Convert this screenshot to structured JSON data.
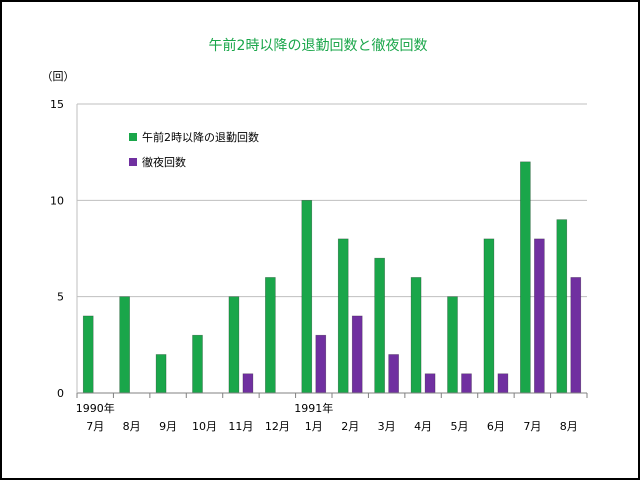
{
  "chart_data": {
    "type": "bar",
    "title": "午前2時以降の退勤回数と徹夜回数",
    "ylabel": "（回）",
    "xlabel": "",
    "ylim": [
      0,
      15
    ],
    "yticks": [
      0,
      5,
      10,
      15
    ],
    "grid": true,
    "legend_position": "top-left",
    "categories": [
      "7月",
      "8月",
      "9月",
      "10月",
      "11月",
      "12月",
      "1月",
      "2月",
      "3月",
      "4月",
      "5月",
      "6月",
      "7月",
      "8月"
    ],
    "year_labels": [
      {
        "category_index": 0,
        "label": "1990年"
      },
      {
        "category_index": 6,
        "label": "1991年"
      }
    ],
    "series": [
      {
        "name": "午前2時以降の退勤回数",
        "color": "#1aa64a",
        "values": [
          4,
          5,
          2,
          3,
          5,
          6,
          10,
          8,
          7,
          6,
          5,
          8,
          12,
          9
        ]
      },
      {
        "name": "徹夜回数",
        "color": "#7030a0",
        "values": [
          0,
          0,
          0,
          0,
          1,
          0,
          3,
          4,
          2,
          1,
          1,
          1,
          8,
          6
        ]
      }
    ]
  }
}
